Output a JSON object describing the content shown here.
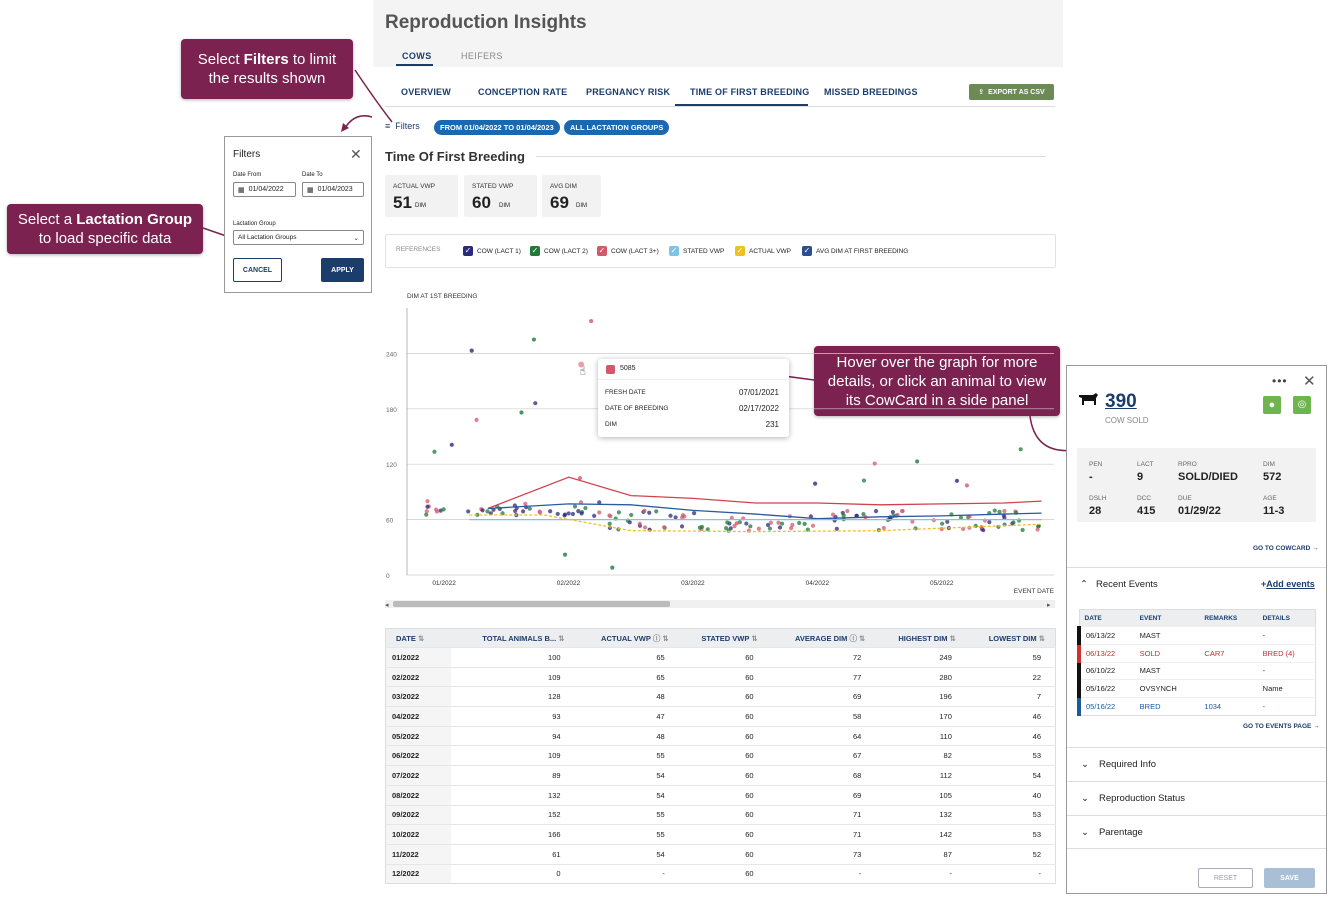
{
  "page": {
    "title": "Reproduction Insights",
    "subtabs": [
      "COWS",
      "HEIFERS"
    ],
    "tabs": [
      "OVERVIEW",
      "CONCEPTION RATE",
      "PREGNANCY RISK",
      "TIME OF FIRST BREEDING",
      "MISSED BREEDINGS"
    ],
    "active_tab": "TIME OF FIRST BREEDING",
    "export_label": "EXPORT AS CSV"
  },
  "filters_bar": {
    "label": "Filters",
    "chips": [
      "FROM 01/04/2022 TO 01/04/2023",
      "ALL LACTATION GROUPS"
    ]
  },
  "callouts": {
    "filters": {
      "pre": "Select ",
      "bold": "Filters",
      "post": " to limit",
      "line2": "the results shown"
    },
    "lactation": {
      "pre": "Select a ",
      "bold": "Lactation Group",
      "line2": "to load specific data"
    },
    "hover": {
      "line1": "Hover over the graph for more",
      "line2": "details, or click an animal to view",
      "line3": "its CowCard in a side panel"
    }
  },
  "filter_panel": {
    "title": "Filters",
    "date_from_label": "Date From",
    "date_from": "01/04/2022",
    "date_to_label": "Date To",
    "date_to": "01/04/2023",
    "lactation_label": "Lactation Group",
    "lactation_value": "All Lactation Groups",
    "cancel": "CANCEL",
    "apply": "APPLY"
  },
  "section_title": "Time Of First Breeding",
  "kpis": [
    {
      "label": "ACTUAL VWP",
      "value": "51",
      "unit": "DIM"
    },
    {
      "label": "STATED VWP",
      "value": "60",
      "unit": "DIM"
    },
    {
      "label": "AVG DIM",
      "value": "69",
      "unit": "DIM"
    }
  ],
  "references": {
    "label": "REFERENCES",
    "items": [
      {
        "name": "COW (LACT 1)",
        "color": "#2b2a7a"
      },
      {
        "name": "COW (LACT 2)",
        "color": "#1f7a3c"
      },
      {
        "name": "COW (LACT 3+)",
        "color": "#d2596c"
      },
      {
        "name": "STATED VWP",
        "color": "#7ec3e8"
      },
      {
        "name": "ACTUAL VWP",
        "color": "#f0c020"
      },
      {
        "name": "AVG DIM AT FIRST BREEDING",
        "color": "#2b4e8f"
      }
    ]
  },
  "tooltip": {
    "animal": "5085",
    "rows": [
      {
        "k": "FRESH DATE",
        "v": "07/01/2021"
      },
      {
        "k": "DATE OF BREEDING",
        "v": "02/17/2022"
      },
      {
        "k": "DIM",
        "v": "231"
      }
    ]
  },
  "chart_data": {
    "type": "scatter",
    "ylabel": "DIM AT 1ST BREEDING",
    "xlabel": "EVENT DATE",
    "y_ticks": [
      "0",
      "60",
      "120",
      "180",
      "240"
    ],
    "ylim": [
      0,
      300
    ],
    "x_ticks": [
      "01/2022",
      "02/2022",
      "03/2022",
      "04/2022",
      "05/2022"
    ],
    "series": [
      {
        "name": "COW (LACT 3+)",
        "type": "line",
        "color": "#d0434d",
        "x": [
          0.35,
          1.0,
          1.5,
          2.0,
          2.5,
          3.0,
          3.5,
          4.0,
          4.5,
          4.8
        ],
        "values": [
          72,
          106,
          86,
          83,
          78,
          78,
          76,
          77,
          78,
          80
        ]
      },
      {
        "name": "AVG DIM AT FIRST BREEDING",
        "type": "line",
        "color": "#2b5aa0",
        "x": [
          0.35,
          1.0,
          1.5,
          2.0,
          2.5,
          3.0,
          3.5,
          4.0,
          4.5,
          4.8
        ],
        "values": [
          72,
          77,
          76,
          70,
          66,
          61,
          63,
          64,
          66,
          67
        ]
      },
      {
        "name": "STATED VWP",
        "type": "line",
        "color": "#7ec3e8",
        "x": [
          0.2,
          4.8
        ],
        "values": [
          60,
          60
        ]
      },
      {
        "name": "ACTUAL VWP",
        "type": "line",
        "color": "#f0c020",
        "dashed": true,
        "x": [
          0.2,
          0.8,
          1.5,
          2.5,
          3.5,
          4.8
        ],
        "values": [
          65,
          65,
          48,
          47,
          48,
          55
        ]
      }
    ]
  },
  "table": {
    "headers": [
      "DATE",
      "TOTAL ANIMALS B...",
      "ACTUAL VWP",
      "STATED VWP",
      "AVERAGE DIM",
      "HIGHEST DIM",
      "LOWEST DIM"
    ],
    "rows": [
      [
        "01/2022",
        "100",
        "65",
        "60",
        "72",
        "249",
        "59"
      ],
      [
        "02/2022",
        "109",
        "65",
        "60",
        "77",
        "280",
        "22"
      ],
      [
        "03/2022",
        "128",
        "48",
        "60",
        "69",
        "196",
        "7"
      ],
      [
        "04/2022",
        "93",
        "47",
        "60",
        "58",
        "170",
        "46"
      ],
      [
        "05/2022",
        "94",
        "48",
        "60",
        "64",
        "110",
        "46"
      ],
      [
        "06/2022",
        "109",
        "55",
        "60",
        "67",
        "82",
        "53"
      ],
      [
        "07/2022",
        "89",
        "54",
        "60",
        "68",
        "112",
        "54"
      ],
      [
        "08/2022",
        "132",
        "54",
        "60",
        "69",
        "105",
        "40"
      ],
      [
        "09/2022",
        "152",
        "55",
        "60",
        "71",
        "132",
        "53"
      ],
      [
        "10/2022",
        "166",
        "55",
        "60",
        "71",
        "142",
        "53"
      ],
      [
        "11/2022",
        "61",
        "54",
        "60",
        "73",
        "87",
        "52"
      ],
      [
        "12/2022",
        "0",
        "-",
        "60",
        "-",
        "-",
        "-"
      ]
    ]
  },
  "cowcard": {
    "id": "390",
    "status": "COW SOLD",
    "stats": [
      {
        "l": "PEN",
        "v": "-"
      },
      {
        "l": "LACT",
        "v": "9"
      },
      {
        "l": "RPRO",
        "v": "SOLD/DIED"
      },
      {
        "l": "DIM",
        "v": "572"
      },
      {
        "l": "DSLH",
        "v": "28"
      },
      {
        "l": "DCC",
        "v": "415"
      },
      {
        "l": "DUE",
        "v": "01/29/22"
      },
      {
        "l": "AGE",
        "v": "11-3"
      }
    ],
    "go_cowcard": "GO TO COWCARD",
    "recent_events": "Recent Events",
    "add_events": "Add events",
    "event_headers": [
      "DATE",
      "EVENT",
      "REMARKS",
      "DETAILS"
    ],
    "events": [
      {
        "date": "06/13/22",
        "event": "MAST",
        "remarks": "",
        "details": "-",
        "color": "#111",
        "text": "#222"
      },
      {
        "date": "06/13/22",
        "event": "SOLD",
        "remarks": "CAR7",
        "details": "BRED (4)",
        "color": "#d03030",
        "text": "#c03030"
      },
      {
        "date": "06/10/22",
        "event": "MAST",
        "remarks": "",
        "details": "-",
        "color": "#111",
        "text": "#222"
      },
      {
        "date": "05/16/22",
        "event": "OVSYNCH",
        "remarks": "",
        "details": "Name",
        "color": "#111",
        "text": "#222"
      },
      {
        "date": "05/16/22",
        "event": "BRED",
        "remarks": "1034",
        "details": "-",
        "color": "#1a5a9a",
        "text": "#1a5a9a"
      }
    ],
    "go_events": "GO TO EVENTS PAGE",
    "sections": [
      "Required Info",
      "Reproduction Status",
      "Parentage"
    ],
    "reset": "RESET",
    "save": "SAVE"
  }
}
